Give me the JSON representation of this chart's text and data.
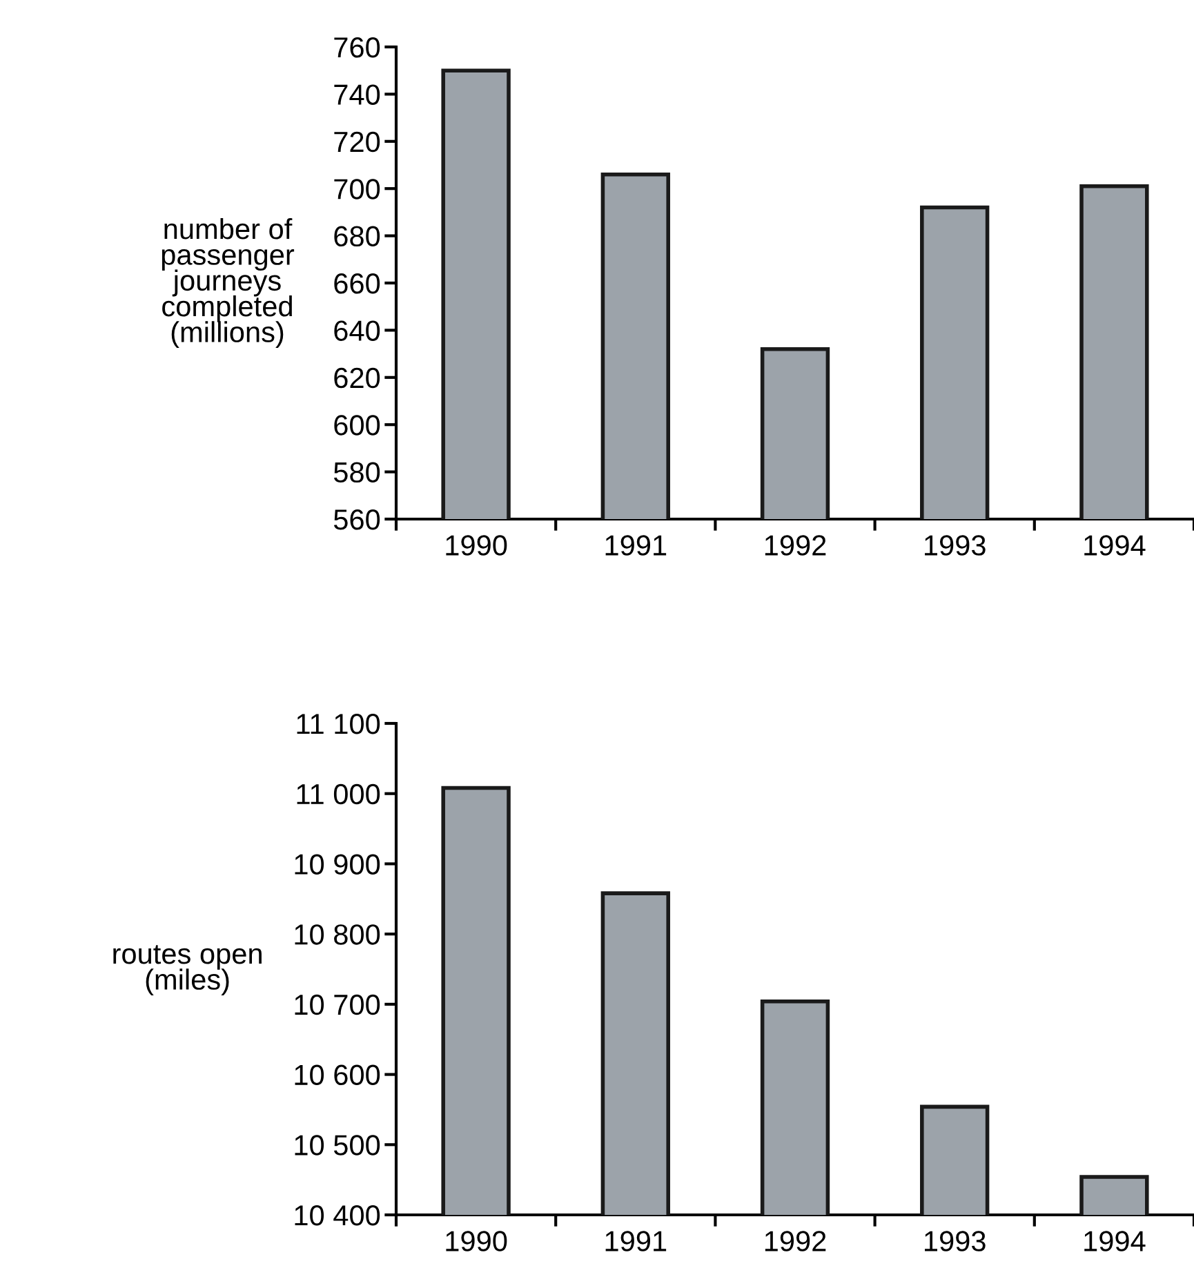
{
  "chart_data": [
    {
      "type": "bar",
      "ylabel": "number of\npassenger\njourneys\ncompleted\n(millions)",
      "categories": [
        "1990",
        "1991",
        "1992",
        "1993",
        "1994"
      ],
      "values": [
        750,
        706,
        632,
        692,
        701
      ],
      "color": "#9ca3aa",
      "ylim": [
        560,
        760
      ],
      "yticks": [
        560,
        580,
        600,
        620,
        640,
        660,
        680,
        700,
        720,
        740,
        760
      ],
      "grid": false,
      "legend": false
    },
    {
      "type": "bar",
      "ylabel": "routes open\n(miles)",
      "categories": [
        "1990",
        "1991",
        "1992",
        "1993",
        "1994"
      ],
      "values": [
        11008,
        10858,
        10704,
        10554,
        10454
      ],
      "color": "#9ca3aa",
      "ylim": [
        10400,
        11100
      ],
      "yticks": [
        {
          "value": 10400,
          "label": "10 400"
        },
        {
          "value": 10500,
          "label": "10 500"
        },
        {
          "value": 10600,
          "label": "10 600"
        },
        {
          "value": 10700,
          "label": "10 700"
        },
        {
          "value": 10800,
          "label": "10 800"
        },
        {
          "value": 10900,
          "label": "10 900"
        },
        {
          "value": 11000,
          "label": "11 000"
        },
        {
          "value": 11100,
          "label": "11 100"
        }
      ],
      "grid": false,
      "legend": false
    }
  ]
}
